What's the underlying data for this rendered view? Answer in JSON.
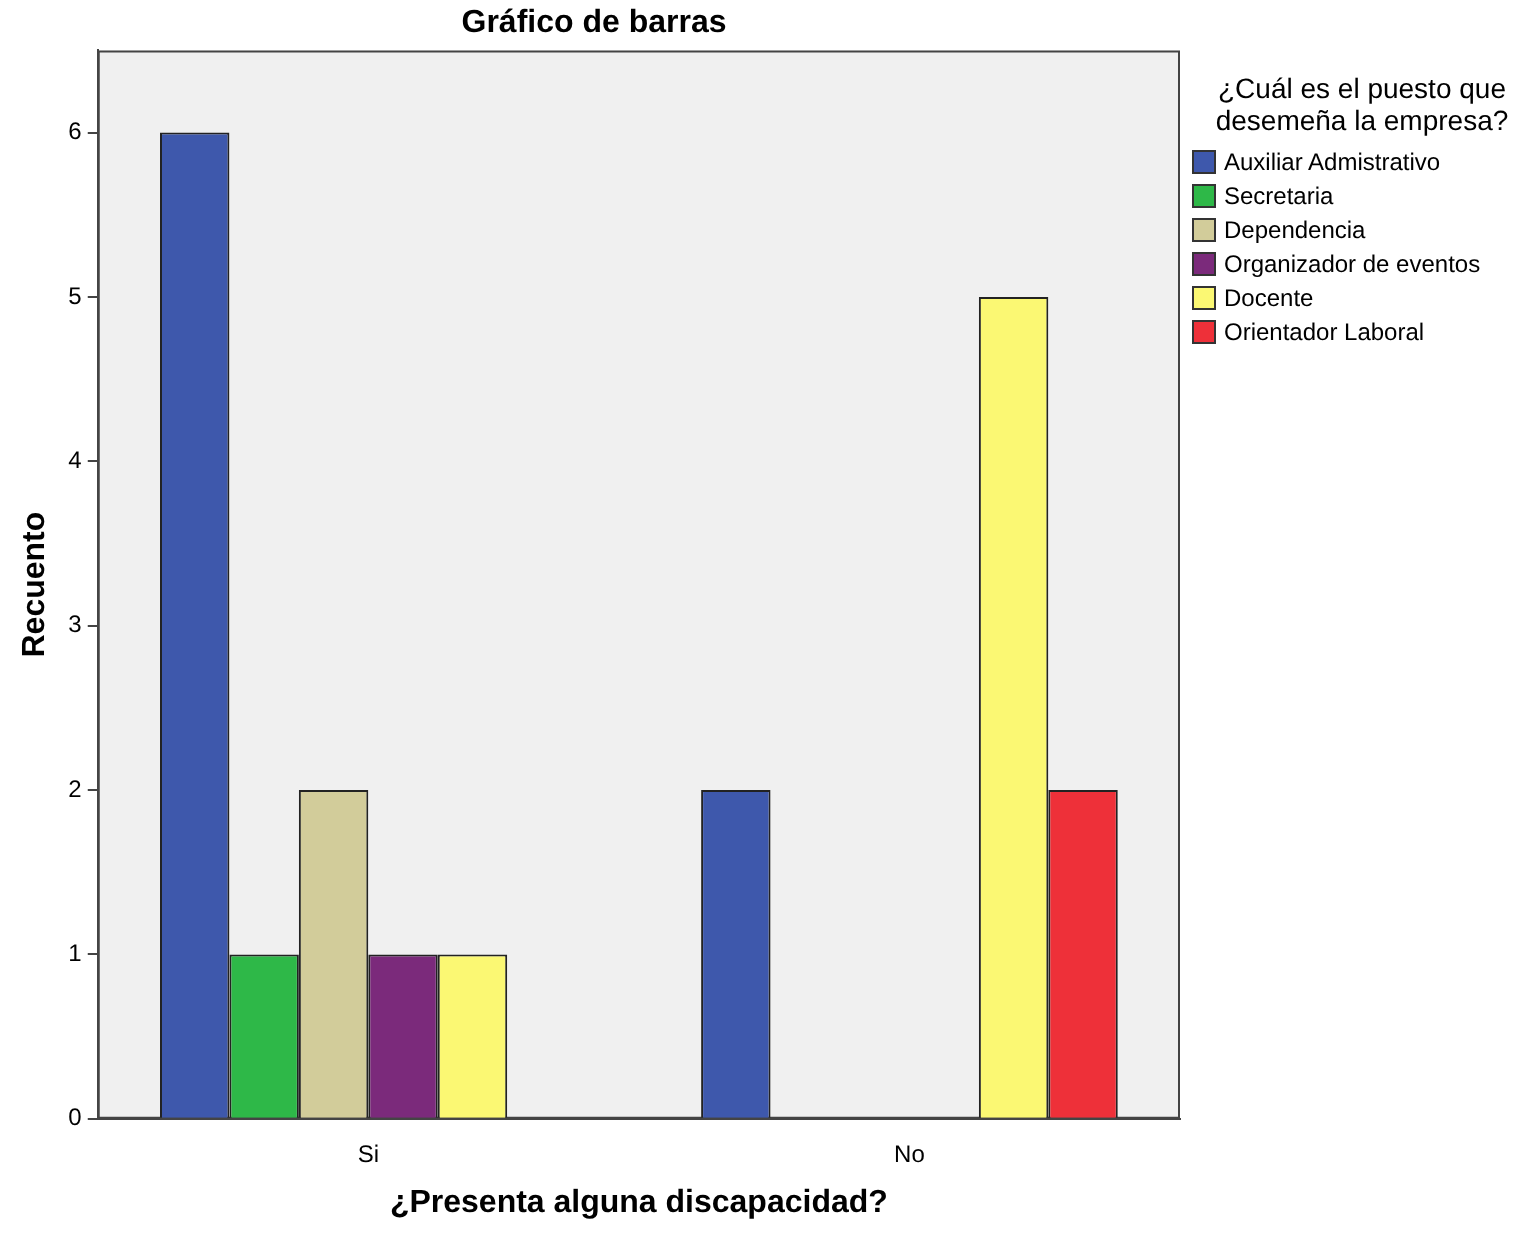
{
  "chart_data": {
    "type": "bar",
    "title": "Gráfico de barras",
    "xlabel": "¿Presenta alguna discapacidad?",
    "ylabel": "Recuento",
    "legend_title": "¿Cuál es el puesto que desemeña la empresa?",
    "categories": [
      "Si",
      "No"
    ],
    "series": [
      {
        "name": "Auxiliar Admistrativo",
        "color": "#3e58ac",
        "values": [
          6,
          2
        ]
      },
      {
        "name": "Secretaria",
        "color": "#2eb848",
        "values": [
          1,
          null
        ]
      },
      {
        "name": "Dependencia",
        "color": "#d2cc9a",
        "values": [
          2,
          null
        ]
      },
      {
        "name": "Organizador de eventos",
        "color": "#7b2a7b",
        "values": [
          1,
          null
        ]
      },
      {
        "name": "Docente",
        "color": "#fbf873",
        "values": [
          1,
          5
        ]
      },
      {
        "name": "Orientador Laboral",
        "color": "#ee3039",
        "values": [
          null,
          2
        ]
      }
    ],
    "ylim": [
      0,
      6.5
    ],
    "yticks": [
      0,
      1,
      2,
      3,
      4,
      5,
      6
    ],
    "grid": false,
    "legend": "right"
  }
}
